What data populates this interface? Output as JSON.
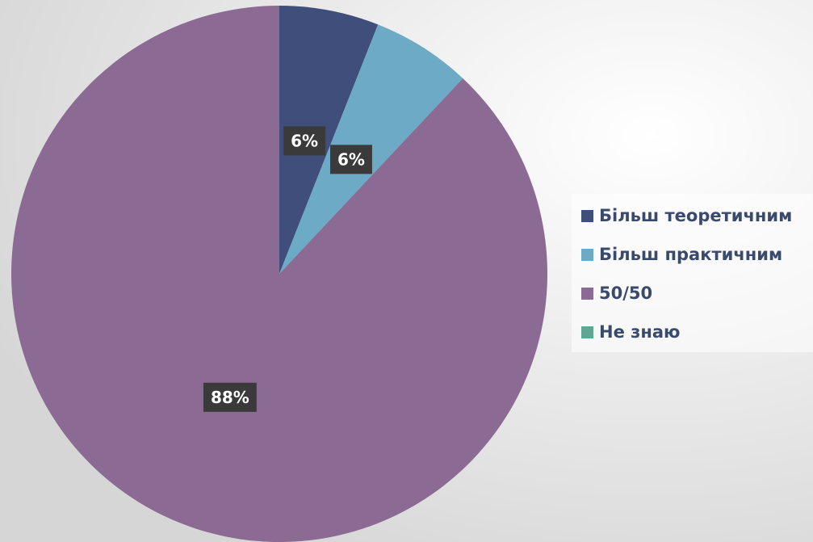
{
  "chart_data": {
    "type": "pie",
    "categories": [
      "Більш теоретичним",
      "Більш практичним",
      "50/50",
      "Не знаю"
    ],
    "values": [
      6,
      6,
      88,
      0
    ],
    "value_labels": [
      "6%",
      "6%",
      "88%",
      null
    ],
    "colors": [
      "#404e7c",
      "#6caac6",
      "#8b6a94",
      "#5fa792"
    ],
    "legend": "right"
  }
}
